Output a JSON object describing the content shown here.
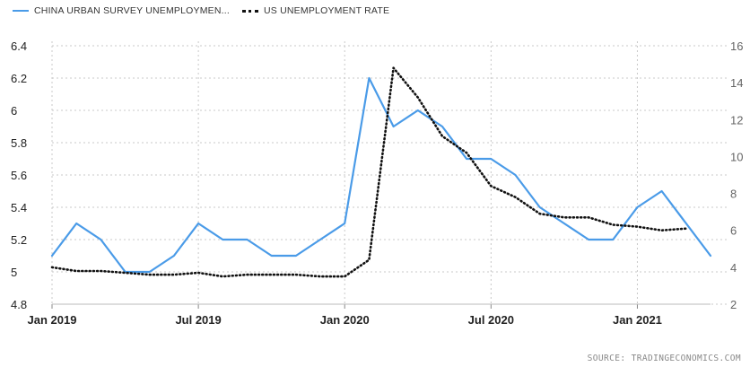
{
  "legend": {
    "series1": "CHINA URBAN SURVEY UNEMPLOYMEN...",
    "series2": "US UNEMPLOYMENT RATE"
  },
  "source": "SOURCE:  TRADINGECONOMICS.COM",
  "colors": {
    "china": "#4a9be8",
    "us": "#111111",
    "grid": "#c8c8c8"
  },
  "chart_data": {
    "type": "line",
    "title": "",
    "x": [
      "2019-01",
      "2019-02",
      "2019-03",
      "2019-04",
      "2019-05",
      "2019-06",
      "2019-07",
      "2019-08",
      "2019-09",
      "2019-10",
      "2019-11",
      "2019-12",
      "2020-01",
      "2020-02",
      "2020-03",
      "2020-04",
      "2020-05",
      "2020-06",
      "2020-07",
      "2020-08",
      "2020-09",
      "2020-10",
      "2020-11",
      "2020-12",
      "2021-01",
      "2021-02",
      "2021-03",
      "2021-04"
    ],
    "x_tick_labels": [
      "Jan 2019",
      "Jul 2019",
      "Jan 2020",
      "Jul 2020",
      "Jan 2021"
    ],
    "x_tick_positions": [
      "2019-01",
      "2019-07",
      "2020-01",
      "2020-07",
      "2021-01"
    ],
    "y_left": {
      "ticks": [
        "4.8",
        "5",
        "5.2",
        "5.4",
        "5.6",
        "5.8",
        "6",
        "6.2",
        "6.4"
      ],
      "lim": [
        4.8,
        6.4
      ]
    },
    "y_right": {
      "ticks": [
        "2",
        "4",
        "6",
        "8",
        "10",
        "12",
        "14",
        "16"
      ],
      "lim": [
        2,
        16
      ]
    },
    "grid": "horizontal dotted",
    "legend_position": "top-left",
    "series": [
      {
        "name": "CHINA URBAN SURVEY UNEMPLOYMEN...",
        "axis": "left",
        "style": "solid",
        "values": [
          5.1,
          5.3,
          5.2,
          5.0,
          5.0,
          5.1,
          5.3,
          5.2,
          5.2,
          5.1,
          5.1,
          5.2,
          5.3,
          6.2,
          5.9,
          6.0,
          5.9,
          5.7,
          5.7,
          5.6,
          5.4,
          5.3,
          5.2,
          5.2,
          5.4,
          5.5,
          5.3,
          5.1
        ]
      },
      {
        "name": "US UNEMPLOYMENT RATE",
        "axis": "right",
        "style": "dotted",
        "values": [
          4.0,
          3.8,
          3.8,
          3.7,
          3.6,
          3.6,
          3.7,
          3.5,
          3.6,
          3.6,
          3.6,
          3.5,
          3.5,
          4.4,
          14.8,
          13.2,
          11.1,
          10.2,
          8.4,
          7.8,
          6.9,
          6.7,
          6.7,
          6.3,
          6.2,
          6.0,
          6.1,
          null
        ]
      }
    ]
  }
}
